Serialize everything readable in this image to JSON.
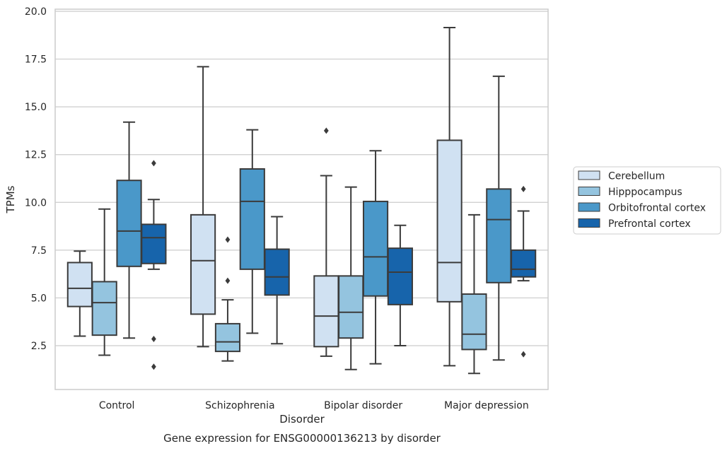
{
  "chart_data": {
    "type": "box",
    "xlabel": "Disorder",
    "ylabel": "TPMs",
    "caption": "Gene expression for ENSG00000136213 by disorder",
    "ylim": [
      0,
      20
    ],
    "yticks": [
      2.5,
      5.0,
      7.5,
      10.0,
      12.5,
      15.0,
      17.5,
      20.0
    ],
    "ytick_labels": [
      "2.5",
      "5.0",
      "7.5",
      "10.0",
      "12.5",
      "15.0",
      "17.5",
      "20.0"
    ],
    "grid": "horizontal",
    "legend_placement": "right",
    "categories": [
      "Control",
      "Schizophrenia",
      "Bipolar disorder",
      "Major depression"
    ],
    "series": [
      {
        "name": "Cerebellum",
        "color": "#d0e1f2",
        "boxes": [
          {
            "whislo": 3.0,
            "q1": 4.55,
            "med": 5.5,
            "q3": 6.85,
            "whishi": 7.45,
            "fliers": []
          },
          {
            "whislo": 2.45,
            "q1": 4.15,
            "med": 6.95,
            "q3": 9.35,
            "whishi": 17.1,
            "fliers": []
          },
          {
            "whislo": 1.95,
            "q1": 2.45,
            "med": 4.05,
            "q3": 6.15,
            "whishi": 11.4,
            "fliers": [
              13.75
            ]
          },
          {
            "whislo": 1.45,
            "q1": 4.8,
            "med": 6.85,
            "q3": 13.25,
            "whishi": 19.15,
            "fliers": []
          }
        ]
      },
      {
        "name": "Hipppocampus",
        "color": "#94c4df",
        "boxes": [
          {
            "whislo": 2.0,
            "q1": 3.05,
            "med": 4.75,
            "q3": 5.85,
            "whishi": 9.65,
            "fliers": []
          },
          {
            "whislo": 1.7,
            "q1": 2.2,
            "med": 2.7,
            "q3": 3.65,
            "whishi": 4.9,
            "fliers": [
              5.9,
              8.05
            ]
          },
          {
            "whislo": 1.25,
            "q1": 2.9,
            "med": 4.25,
            "q3": 6.15,
            "whishi": 10.8,
            "fliers": []
          },
          {
            "whislo": 1.05,
            "q1": 2.3,
            "med": 3.1,
            "q3": 5.2,
            "whishi": 9.35,
            "fliers": []
          }
        ]
      },
      {
        "name": "Orbitofrontal cortex",
        "color": "#4a98c9",
        "boxes": [
          {
            "whislo": 2.9,
            "q1": 6.65,
            "med": 8.5,
            "q3": 11.15,
            "whishi": 14.2,
            "fliers": []
          },
          {
            "whislo": 3.15,
            "q1": 6.5,
            "med": 10.05,
            "q3": 11.75,
            "whishi": 13.8,
            "fliers": []
          },
          {
            "whislo": 1.55,
            "q1": 5.1,
            "med": 7.15,
            "q3": 10.05,
            "whishi": 12.7,
            "fliers": []
          },
          {
            "whislo": 1.75,
            "q1": 5.8,
            "med": 9.1,
            "q3": 10.7,
            "whishi": 16.6,
            "fliers": []
          }
        ]
      },
      {
        "name": "Prefrontal cortex",
        "color": "#1764ab",
        "boxes": [
          {
            "whislo": 6.5,
            "q1": 6.8,
            "med": 8.15,
            "q3": 8.85,
            "whishi": 10.15,
            "fliers": [
              12.05,
              2.85,
              1.4
            ]
          },
          {
            "whislo": 2.6,
            "q1": 5.15,
            "med": 6.1,
            "q3": 7.55,
            "whishi": 9.25,
            "fliers": []
          },
          {
            "whislo": 2.5,
            "q1": 4.65,
            "med": 6.35,
            "q3": 7.6,
            "whishi": 8.8,
            "fliers": []
          },
          {
            "whislo": 5.9,
            "q1": 6.1,
            "med": 6.5,
            "q3": 7.5,
            "whishi": 9.55,
            "fliers": [
              10.7,
              2.05
            ]
          }
        ]
      }
    ]
  }
}
